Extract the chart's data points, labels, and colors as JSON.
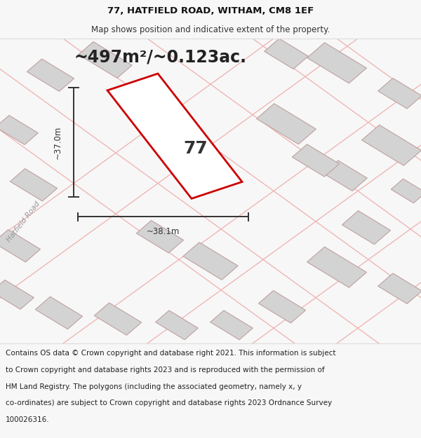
{
  "title_line1": "77, HATFIELD ROAD, WITHAM, CM8 1EF",
  "title_line2": "Map shows position and indicative extent of the property.",
  "area_text": "~497m²/~0.123ac.",
  "property_number": "77",
  "dim_width": "~38.1m",
  "dim_height": "~37.0m",
  "road_label": "Hatfield Road",
  "footer_lines": [
    "Contains OS data © Crown copyright and database right 2021. This information is subject",
    "to Crown copyright and database rights 2023 and is reproduced with the permission of",
    "HM Land Registry. The polygons (including the associated geometry, namely x, y",
    "co-ordinates) are subject to Crown copyright and database rights 2023 Ordnance Survey",
    "100026316."
  ],
  "bg_color": "#f7f7f7",
  "map_bg_color": "#ffffff",
  "property_fill": "#ffffff",
  "property_edge": "#cc0000",
  "building_fill": "#d3d3d3",
  "building_edge": "#c0a0a0",
  "road_line_color": "#f0b0b0",
  "dim_color": "#333333",
  "title_fontsize": 9.5,
  "subtitle_fontsize": 8.5,
  "area_fontsize": 17,
  "footer_fontsize": 7.5,
  "number_fontsize": 18,
  "road_label_fontsize": 7.5
}
